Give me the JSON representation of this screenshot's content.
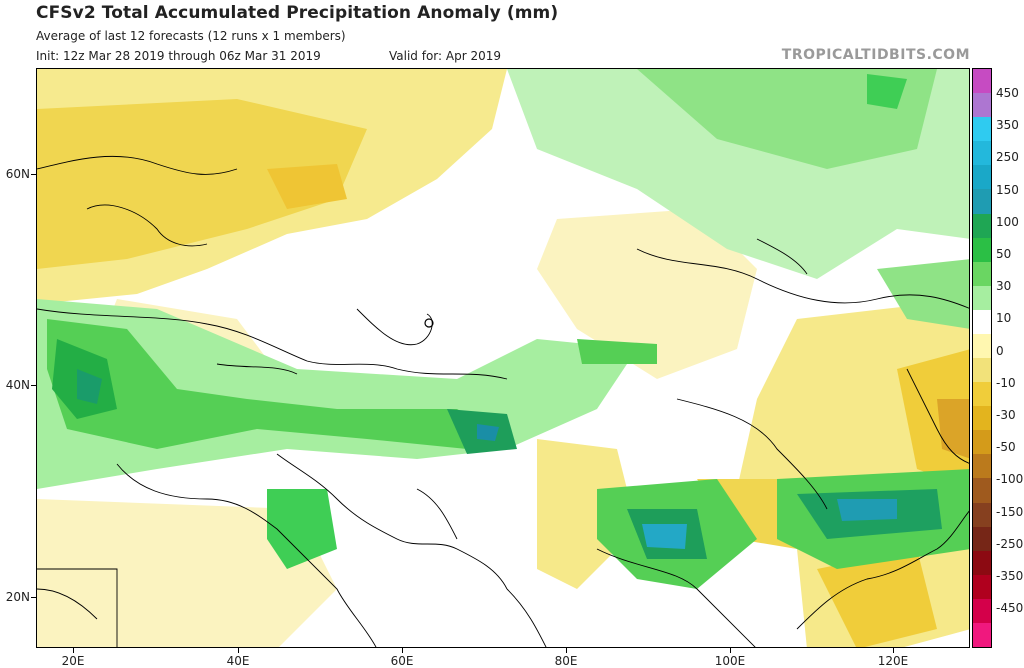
{
  "title": "CFSv2 Total Accumulated Precipitation Anomaly (mm)",
  "subtitle": "Average of last 12 forecasts (12 runs x 1 members)",
  "init": "Init: 12z Mar 28 2019 through 06z Mar 31 2019",
  "valid": "Valid for: Apr 2019",
  "brand": "TROPICALTIDBITS.COM",
  "lat_labels": [
    "60N",
    "40N",
    "20N"
  ],
  "lon_labels": [
    "20E",
    "40E",
    "60E",
    "80E",
    "100E",
    "120E"
  ],
  "colorbar": {
    "labels": [
      "450",
      "350",
      "250",
      "150",
      "100",
      "50",
      "30",
      "10",
      "0",
      "-10",
      "-30",
      "-50",
      "-100",
      "-150",
      "-250",
      "-350",
      "-450"
    ],
    "colors": [
      "#c64bc2",
      "#ad76d1",
      "#2fcbf0",
      "#23b8dc",
      "#1aa8c8",
      "#1f9cb2",
      "#1fa654",
      "#2bbf45",
      "#6ad662",
      "#a6eea0",
      "#ffffff",
      "#fff7b0",
      "#f2e27a",
      "#f0cd3a",
      "#e3b41e",
      "#d49b1a",
      "#bb7a1c",
      "#9f5a1e",
      "#86401f",
      "#762617",
      "#8c0a12",
      "#b0001e",
      "#d4004a",
      "#f0187e"
    ]
  }
}
